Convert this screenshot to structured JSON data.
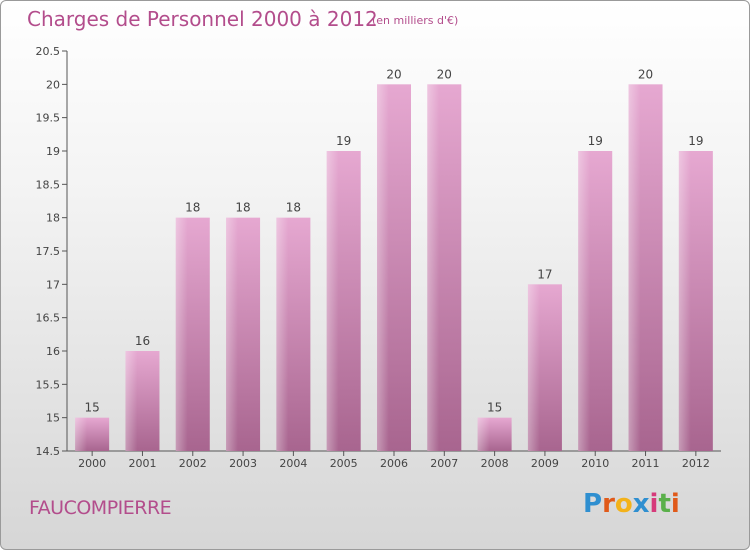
{
  "header": {
    "title": "Charges de Personnel 2000 à 2012",
    "unit": "(en milliers d'€)"
  },
  "footer": {
    "commune": "FAUCOMPIERRE"
  },
  "logo": {
    "text": "Proxiti",
    "letters": [
      "P",
      "r",
      "o",
      "x",
      "i",
      "t",
      "i"
    ],
    "colors": [
      "#2f8fd0",
      "#e05a1a",
      "#f3b21a",
      "#2f8fd0",
      "#d63a7a",
      "#5ab04a",
      "#e05a1a"
    ]
  },
  "chart_data": {
    "type": "bar",
    "categories": [
      "2000",
      "2001",
      "2002",
      "2003",
      "2004",
      "2005",
      "2006",
      "2007",
      "2008",
      "2009",
      "2010",
      "2011",
      "2012"
    ],
    "values": [
      15,
      16,
      18,
      18,
      18,
      19,
      20,
      20,
      15,
      17,
      19,
      20,
      19
    ],
    "ylim": [
      14.5,
      20.5
    ],
    "yticks": [
      "14.5",
      "15",
      "15.5",
      "16",
      "16.5",
      "17",
      "17.5",
      "18",
      "18.5",
      "19",
      "19.5",
      "20",
      "20.5"
    ],
    "bar_color": "#d58fbd",
    "grid": false,
    "title": "Charges de Personnel 2000 à 2012",
    "xlabel": "",
    "ylabel": ""
  }
}
